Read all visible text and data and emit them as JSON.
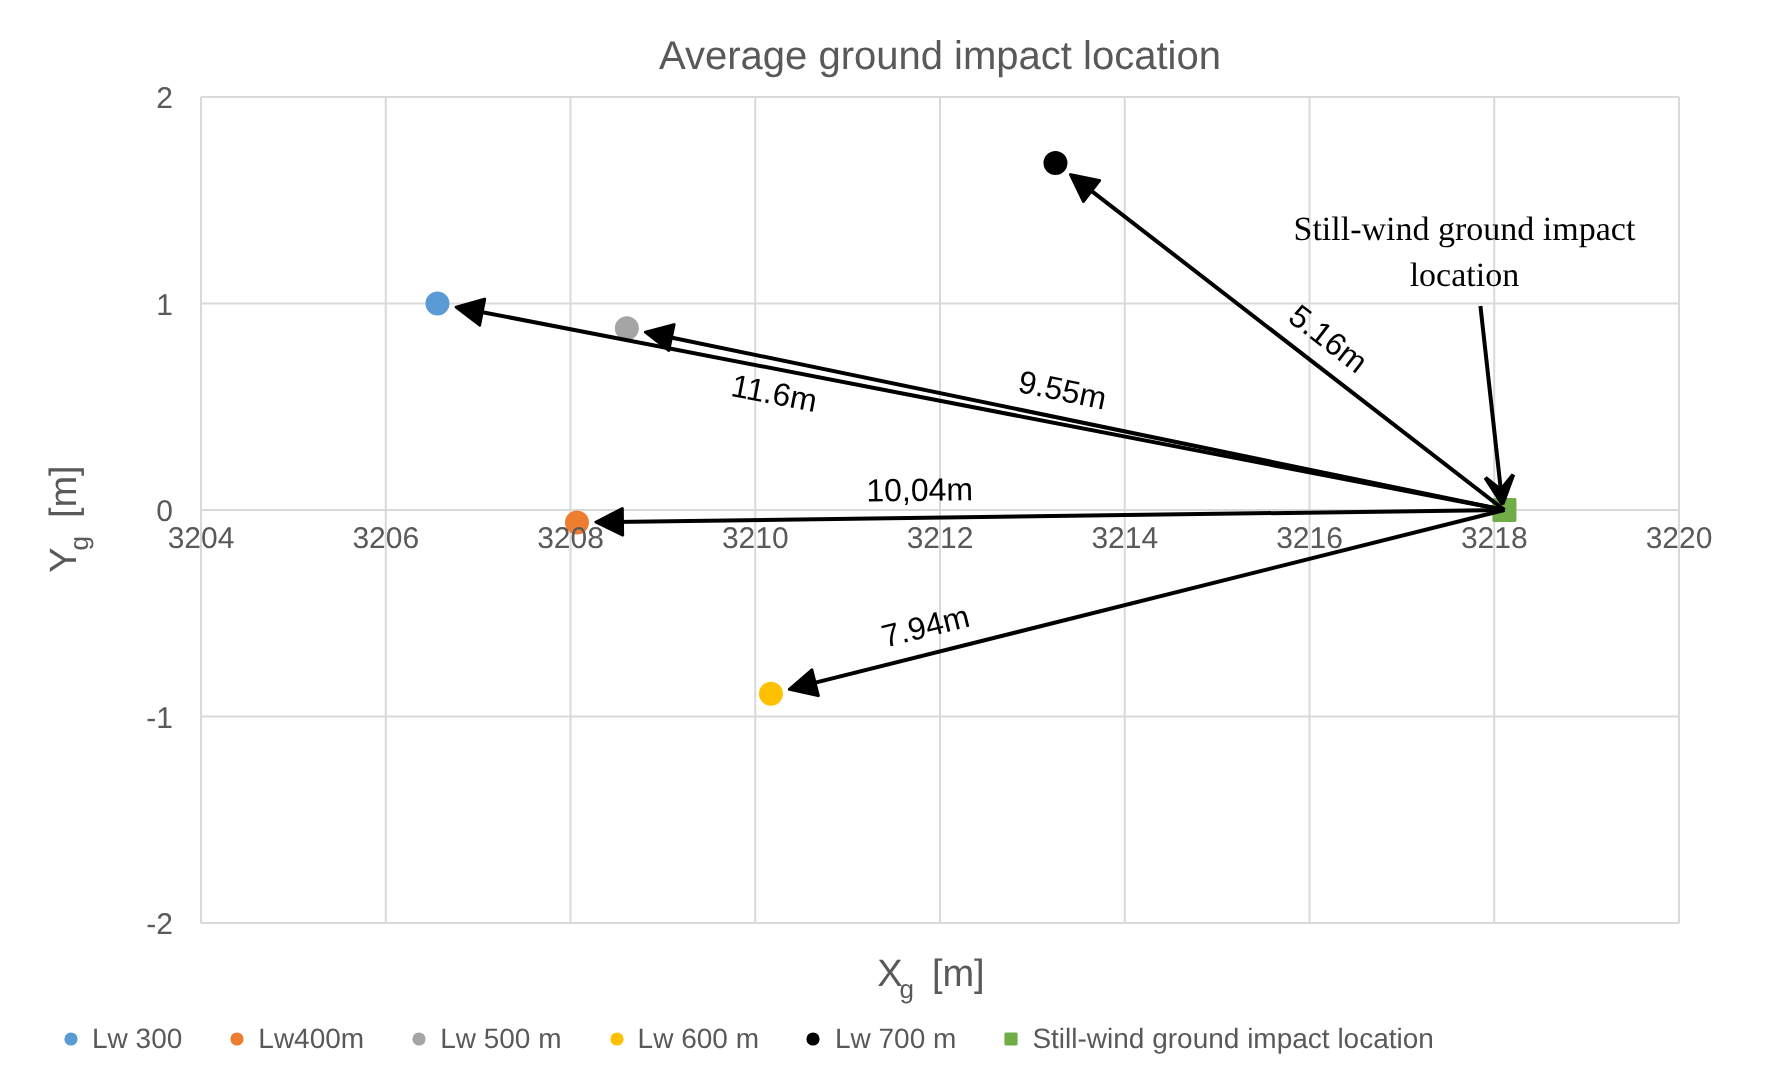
{
  "chart_data": {
    "type": "scatter",
    "title": "Average ground impact location",
    "xlabel": "X$_{g}$ [m]",
    "ylabel": "Y$_{g}$ [m]",
    "xlim": [
      3204,
      3220
    ],
    "ylim": [
      -2,
      2
    ],
    "xticks": [
      3204,
      3206,
      3208,
      3210,
      3212,
      3214,
      3216,
      3218,
      3220
    ],
    "yticks": [
      -2,
      -1,
      0,
      1,
      2
    ],
    "grid": true,
    "legend": "bottom",
    "series": [
      {
        "name": "Lw 300",
        "color": "#5b9bd5",
        "marker": "circle",
        "x": [
          3206.56
        ],
        "values": [
          1.0
        ]
      },
      {
        "name": "Lw400m",
        "color": "#ed7d31",
        "marker": "circle",
        "x": [
          3208.07
        ],
        "values": [
          -0.06
        ]
      },
      {
        "name": "Lw 500 m",
        "color": "#a5a5a5",
        "marker": "circle",
        "x": [
          3208.61
        ],
        "values": [
          0.88
        ]
      },
      {
        "name": "Lw 600 m",
        "color": "#ffc000",
        "marker": "circle",
        "x": [
          3210.17
        ],
        "values": [
          -0.89
        ]
      },
      {
        "name": "Lw 700 m",
        "color": "#000000",
        "marker": "circle",
        "x": [
          3213.25
        ],
        "values": [
          1.68
        ]
      },
      {
        "name": "Still-wind ground impact location",
        "color": "#70ad47",
        "marker": "square",
        "x": [
          3218.11
        ],
        "values": [
          0.0
        ]
      }
    ],
    "annotations": [
      "11.6m",
      "10,04m",
      "9.55m",
      "7.94m",
      "5.16m",
      {
        "text": "Still-wind ground impact\nlocation",
        "x": 3218.11,
        "y": 0.0
      }
    ]
  }
}
